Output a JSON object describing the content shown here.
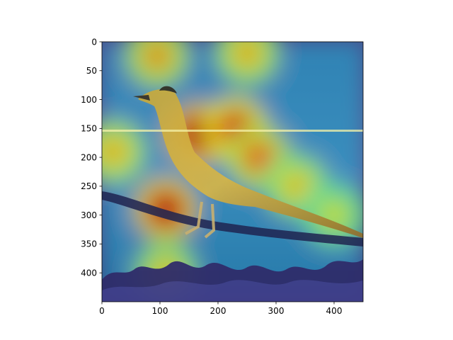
{
  "chart_data": {
    "type": "heatmap",
    "title": "",
    "xlabel": "",
    "ylabel": "",
    "xlim": [
      0,
      450
    ],
    "ylim": [
      450,
      0
    ],
    "y_axis_inverted": true,
    "xticks": [
      0,
      100,
      200,
      300,
      400
    ],
    "yticks": [
      0,
      50,
      100,
      150,
      200,
      250,
      300,
      350,
      400
    ],
    "grid": false,
    "legend": "none",
    "colormap": "jet",
    "image": "photo of a roadrunner standing on a branch with a saliency heatmap overlay",
    "hotspots": [
      {
        "x": 165,
        "y": 160,
        "intensity": 1.0
      },
      {
        "x": 110,
        "y": 290,
        "intensity": 0.95
      },
      {
        "x": 230,
        "y": 150,
        "intensity": 0.85
      },
      {
        "x": 270,
        "y": 200,
        "intensity": 0.7
      },
      {
        "x": 95,
        "y": 25,
        "intensity": 0.6
      },
      {
        "x": 250,
        "y": 20,
        "intensity": 0.55
      },
      {
        "x": 20,
        "y": 190,
        "intensity": 0.55
      },
      {
        "x": 335,
        "y": 250,
        "intensity": 0.5
      },
      {
        "x": 400,
        "y": 300,
        "intensity": 0.4
      },
      {
        "x": 110,
        "y": 400,
        "intensity": 0.5
      }
    ]
  }
}
